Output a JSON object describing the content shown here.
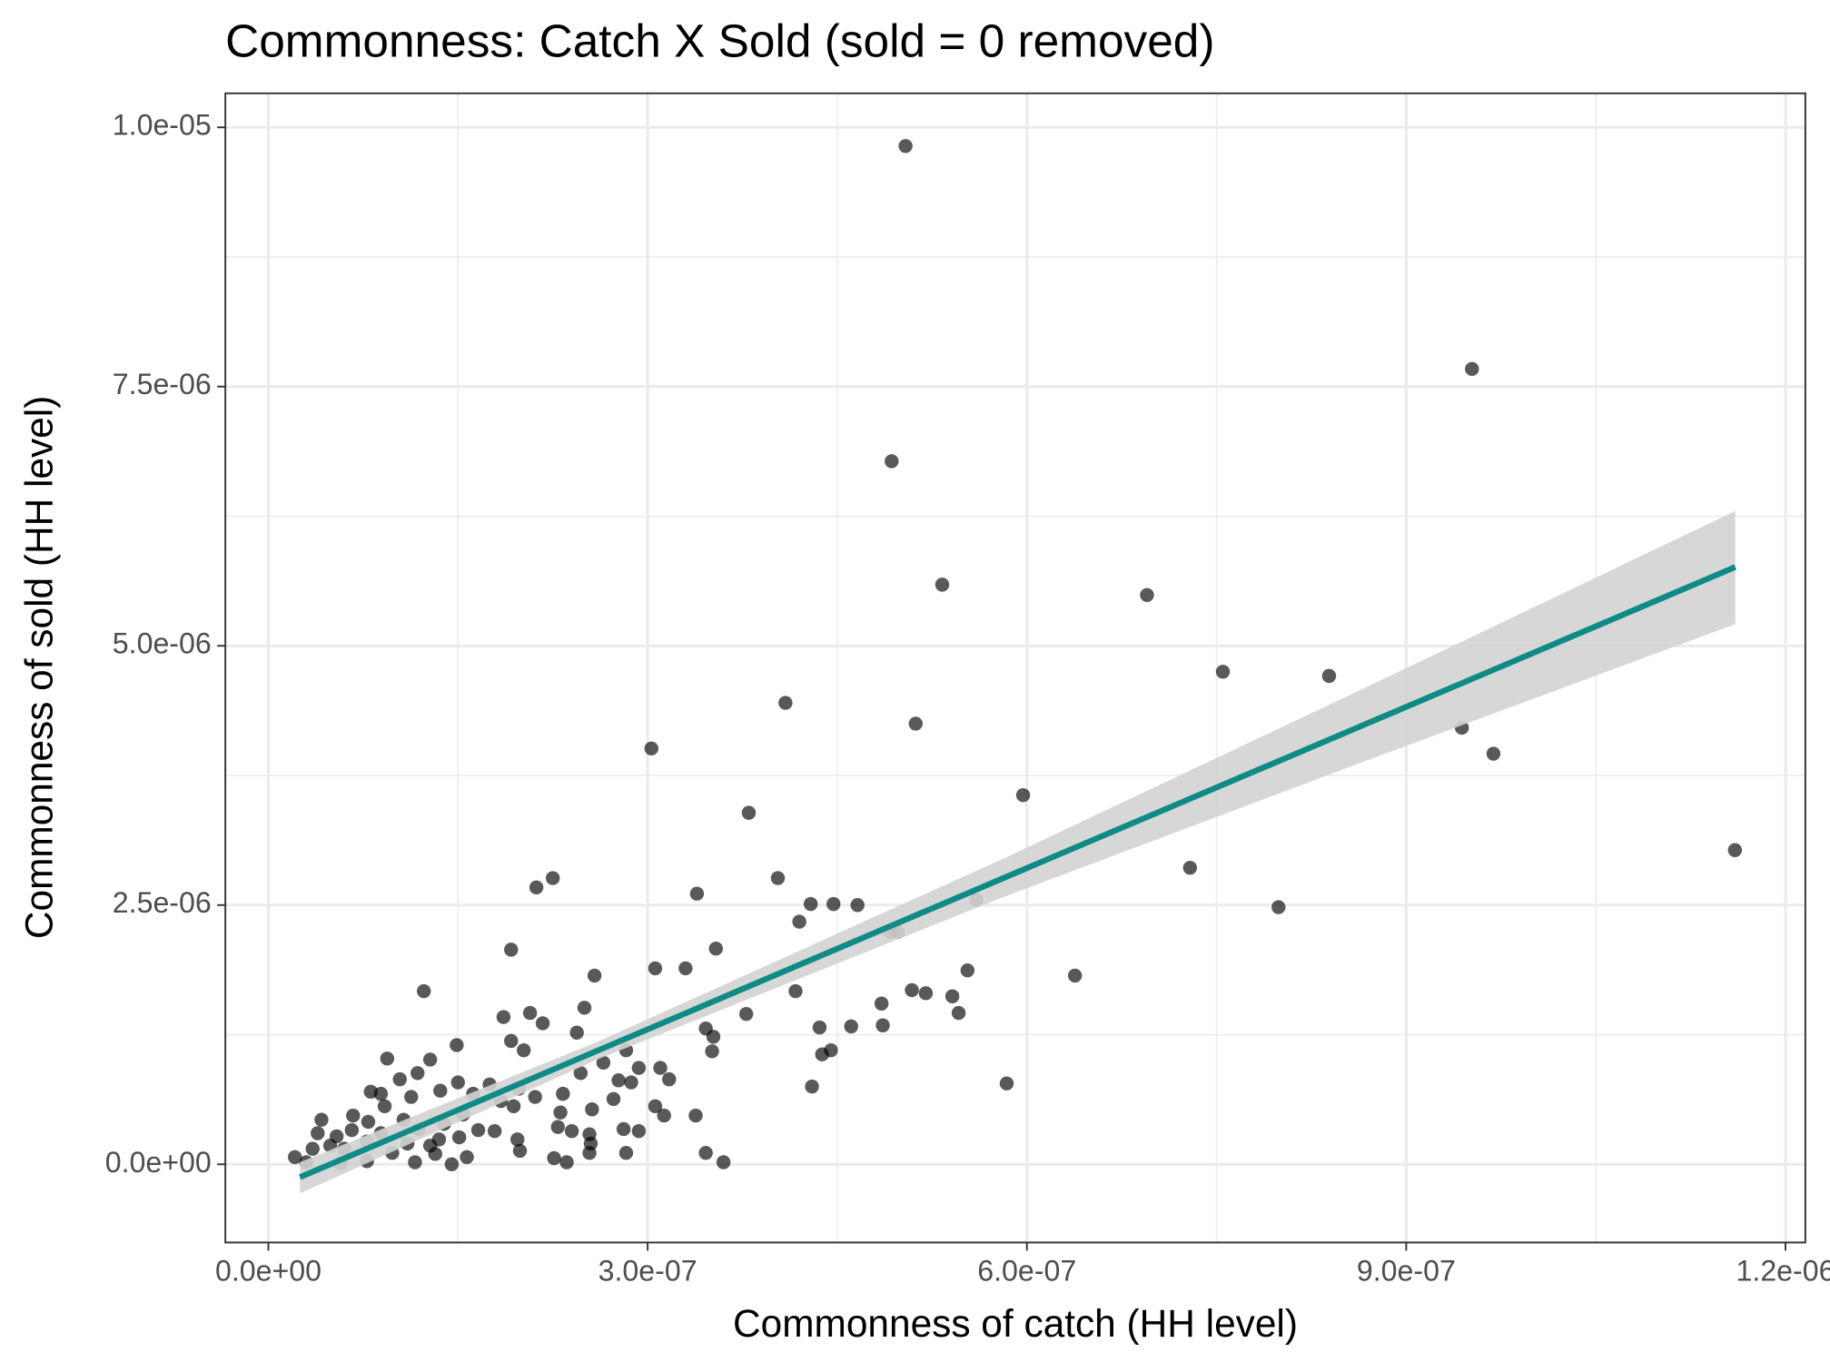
{
  "chart_data": {
    "type": "scatter",
    "title": "Commonness: Catch X Sold (sold = 0 removed)",
    "x_label": "Commonness of catch (HH level)",
    "y_label": "Commonness of sold (HH level)",
    "xlim": [
      -3.4e-08,
      1.2157e-06
    ],
    "ylim": [
      -7.54e-07,
      1.0328e-05
    ],
    "xticks": [
      {
        "value": 0,
        "label": "0.0e+00"
      },
      {
        "value": 3e-07,
        "label": "3.0e-07"
      },
      {
        "value": 6e-07,
        "label": "6.0e-07"
      },
      {
        "value": 9e-07,
        "label": "9.0e-07"
      },
      {
        "value": 1.2e-06,
        "label": "1.2e-06"
      }
    ],
    "yticks": [
      {
        "value": 0,
        "label": "0.0e+00"
      },
      {
        "value": 2.5e-06,
        "label": "2.5e-06"
      },
      {
        "value": 5e-06,
        "label": "5.0e-06"
      },
      {
        "value": 7.5e-06,
        "label": "7.5e-06"
      },
      {
        "value": 1e-05,
        "label": "1.0e-05"
      }
    ],
    "x_minor_ticks": [
      1.5e-07,
      4.5e-07,
      7.5e-07,
      1.05e-06
    ],
    "y_minor_ticks": [
      1.25e-06,
      3.75e-06,
      6.25e-06,
      8.75e-06
    ],
    "grid": true,
    "point_color": "#000000",
    "x": [
      5.04e-07,
      9.52e-07,
      4.93e-07,
      5.33e-07,
      6.95e-07,
      7.55e-07,
      8.39e-07,
      4.09e-07,
      5.12e-07,
      9.44e-07,
      9.69e-07,
      3.03e-07,
      5.97e-07,
      3.8e-07,
      1.16e-06,
      7.29e-07,
      7.99e-07,
      4.03e-07,
      2.25e-07,
      2.12e-07,
      3.39e-07,
      4.29e-07,
      4.47e-07,
      4.66e-07,
      5.6e-07,
      4.2e-07,
      4.92e-07,
      4.98e-07,
      3.54e-07,
      1.92e-07,
      3.06e-07,
      3.3e-07,
      5.53e-07,
      2.58e-07,
      6.38e-07,
      1.23e-07,
      4.17e-07,
      5.09e-07,
      5.2e-07,
      5.41e-07,
      4.85e-07,
      5.46e-07,
      2.5e-07,
      2.07e-07,
      1.86e-07,
      3.78e-07,
      2.17e-07,
      3.46e-07,
      4.36e-07,
      4.61e-07,
      4.86e-07,
      3.52e-07,
      2.44e-07,
      1.92e-07,
      1.49e-07,
      3.51e-07,
      4.45e-07,
      4.38e-07,
      2.83e-07,
      2.02e-07,
      9.4e-08,
      1.28e-07,
      2.65e-07,
      3.1e-07,
      2.93e-07,
      2.47e-07,
      1.04e-07,
      1.18e-07,
      3.17e-07,
      2.77e-07,
      2.87e-07,
      5.84e-07,
      4.3e-07,
      1.75e-07,
      1.5e-07,
      1.98e-07,
      8.1e-08,
      1.36e-07,
      8.9e-08,
      1.62e-07,
      2.33e-07,
      1.13e-07,
      2.73e-07,
      2.11e-07,
      1.84e-07,
      3.06e-07,
      9.2e-08,
      1.94e-07,
      2.56e-07,
      2.31e-07,
      1.54e-07,
      3.13e-07,
      3.38e-07,
      6.7e-08,
      4.2e-08,
      1.07e-07,
      7.9e-08,
      1.39e-07,
      2.29e-07,
      2.81e-07,
      1.19e-07,
      1.66e-07,
      6.6e-08,
      2.4e-07,
      2.93e-07,
      1.79e-07,
      3.9e-08,
      8.9e-08,
      2.54e-07,
      5.4e-08,
      1.51e-07,
      1.35e-07,
      1.97e-07,
      7.8e-08,
      1.1e-07,
      4.9e-08,
      2.55e-07,
      1.28e-07,
      6e-08,
      3.5e-08,
      1.99e-07,
      2.54e-07,
      2.83e-07,
      3.46e-07,
      9.8e-08,
      1.32e-07,
      2.1e-08,
      1.57e-07,
      2.26e-07,
      7.8e-08,
      1.16e-07,
      2.36e-07,
      3.6e-07,
      1.45e-07,
      5.7e-08,
      3e-08
    ],
    "values": [
      9.82e-06,
      7.67e-06,
      6.78e-06,
      5.59e-06,
      5.49e-06,
      4.75e-06,
      4.71e-06,
      4.45e-06,
      4.25e-06,
      4.21e-06,
      3.96e-06,
      4.01e-06,
      3.56e-06,
      3.39e-06,
      3.03e-06,
      2.86e-06,
      2.48e-06,
      2.76e-06,
      2.76e-06,
      2.67e-06,
      2.61e-06,
      2.51e-06,
      2.51e-06,
      2.5e-06,
      2.55e-06,
      2.34e-06,
      2.24e-06,
      2.24e-06,
      2.08e-06,
      2.07e-06,
      1.89e-06,
      1.89e-06,
      1.87e-06,
      1.82e-06,
      1.82e-06,
      1.67e-06,
      1.67e-06,
      1.68e-06,
      1.65e-06,
      1.62e-06,
      1.55e-06,
      1.46e-06,
      1.51e-06,
      1.46e-06,
      1.42e-06,
      1.45e-06,
      1.36e-06,
      1.31e-06,
      1.32e-06,
      1.33e-06,
      1.34e-06,
      1.23e-06,
      1.27e-06,
      1.19e-06,
      1.15e-06,
      1.09e-06,
      1.1e-06,
      1.06e-06,
      1.1e-06,
      1.1e-06,
      1.02e-06,
      1.01e-06,
      9.8e-07,
      9.3e-07,
      9.3e-07,
      8.8e-07,
      8.2e-07,
      8.8e-07,
      8.2e-07,
      8.1e-07,
      7.9e-07,
      7.8e-07,
      7.5e-07,
      7.7e-07,
      7.9e-07,
      7.3e-07,
      7e-07,
      7.1e-07,
      6.8e-07,
      6.8e-07,
      6.8e-07,
      6.5e-07,
      6.3e-07,
      6.5e-07,
      6.1e-07,
      5.6e-07,
      5.6e-07,
      5.6e-07,
      5.3e-07,
      5e-07,
      4.8e-07,
      4.7e-07,
      4.7e-07,
      4.7e-07,
      4.3e-07,
      4.3e-07,
      4.1e-07,
      3.9e-07,
      3.6e-07,
      3.4e-07,
      3.4e-07,
      3.3e-07,
      3.3e-07,
      3.2e-07,
      3.2e-07,
      3.2e-07,
      3e-07,
      3e-07,
      2.9e-07,
      2.7e-07,
      2.6e-07,
      2.4e-07,
      2.4e-07,
      2.2e-07,
      2e-07,
      1.8e-07,
      2e-07,
      1.8e-07,
      1.5e-07,
      1.5e-07,
      1.3e-07,
      1.1e-07,
      1.1e-07,
      1.1e-07,
      1.1e-07,
      1e-07,
      7e-08,
      7e-08,
      6e-08,
      3e-08,
      2e-08,
      2e-08,
      2e-08,
      0,
      1e-08,
      2e-08
    ],
    "fit": {
      "color": "#0e8a87",
      "band_color": "#d3d3d3",
      "x": [
        2.5e-08,
        2.6e-07,
        5.8e-07,
        8.7e-07,
        1.1603e-06
      ],
      "y": [
        -1.24e-07,
        1.094e-06,
        2.753e-06,
        4.256e-06,
        5.76e-06
      ],
      "lower": [
        -2.8e-07,
        1.01e-06,
        2.57e-06,
        3.9e-06,
        5.21e-06
      ],
      "upper": [
        2e-08,
        1.18e-06,
        2.94e-06,
        4.61e-06,
        6.3e-06
      ]
    }
  }
}
